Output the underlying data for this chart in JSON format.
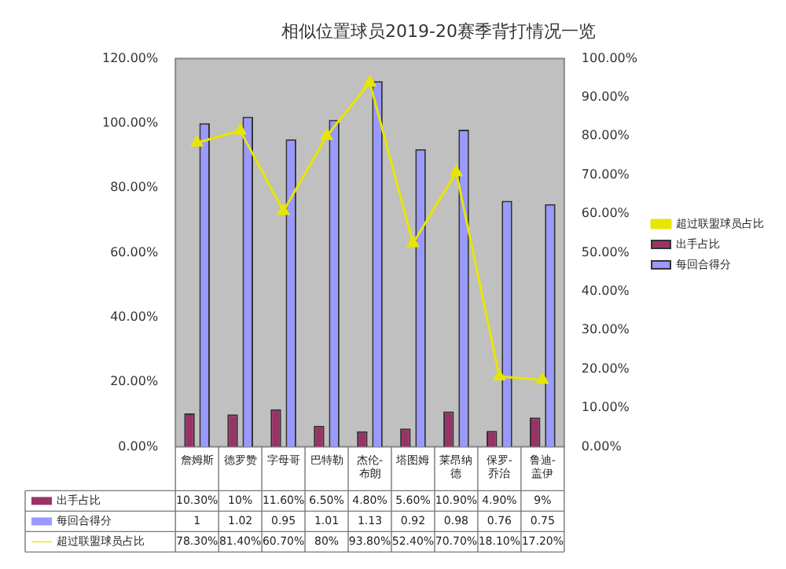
{
  "chart_data": {
    "type": "bar",
    "title": "相似位置球员2019-20赛季背打情况一览",
    "categories": [
      "詹姆斯",
      "德罗赞",
      "字母哥",
      "巴特勒",
      "杰伦-布朗",
      "塔图姆",
      "莱昂纳德",
      "保罗-乔治",
      "鲁迪-盖伊"
    ],
    "series": [
      {
        "name": "出手占比",
        "color": "#993366",
        "values": [
          0.103,
          0.1,
          0.116,
          0.065,
          0.048,
          0.056,
          0.109,
          0.049,
          0.09
        ],
        "value_labels": [
          "10.30%",
          "10%",
          "11.60%",
          "6.50%",
          "4.80%",
          "5.60%",
          "10.90%",
          "4.90%",
          "9%"
        ]
      },
      {
        "name": "每回合得分",
        "color": "#9999ff",
        "values": [
          1,
          1.02,
          0.95,
          1.01,
          1.13,
          0.92,
          0.98,
          0.76,
          0.75
        ],
        "value_labels": [
          "1",
          "1.02",
          "0.95",
          "1.01",
          "1.13",
          "0.92",
          "0.98",
          "0.76",
          "0.75"
        ]
      },
      {
        "name": "超过联盟球员占比",
        "type": "line",
        "axis": "y2",
        "color": "#e6e600",
        "marker": "triangle",
        "values": [
          0.783,
          0.814,
          0.607,
          0.8,
          0.938,
          0.524,
          0.707,
          0.181,
          0.172
        ],
        "value_labels": [
          "78.30%",
          "81.40%",
          "60.70%",
          "80%",
          "93.80%",
          "52.40%",
          "70.70%",
          "18.10%",
          "17.20%"
        ]
      }
    ],
    "ylim": [
      0,
      1.2
    ],
    "yticks": [
      {
        "value": 0,
        "label": "0.00%"
      },
      {
        "value": 0.2,
        "label": "20.00%"
      },
      {
        "value": 0.4,
        "label": "40.00%"
      },
      {
        "value": 0.6,
        "label": "60.00%"
      },
      {
        "value": 0.8,
        "label": "80.00%"
      },
      {
        "value": 1,
        "label": "100.00%"
      },
      {
        "value": 1.2,
        "label": "120.00%"
      }
    ],
    "y2lim": [
      0,
      1
    ],
    "y2ticks": [
      {
        "value": 0,
        "label": "0.00%"
      },
      {
        "value": 0.1,
        "label": "10.00%"
      },
      {
        "value": 0.2,
        "label": "20.00%"
      },
      {
        "value": 0.3,
        "label": "30.00%"
      },
      {
        "value": 0.4,
        "label": "40.00%"
      },
      {
        "value": 0.5,
        "label": "50.00%"
      },
      {
        "value": 0.6,
        "label": "60.00%"
      },
      {
        "value": 0.7,
        "label": "70.00%"
      },
      {
        "value": 0.8,
        "label": "80.00%"
      },
      {
        "value": 0.9,
        "label": "90.00%"
      },
      {
        "value": 1,
        "label": "100.00%"
      }
    ],
    "grid": false,
    "legend": "right"
  }
}
